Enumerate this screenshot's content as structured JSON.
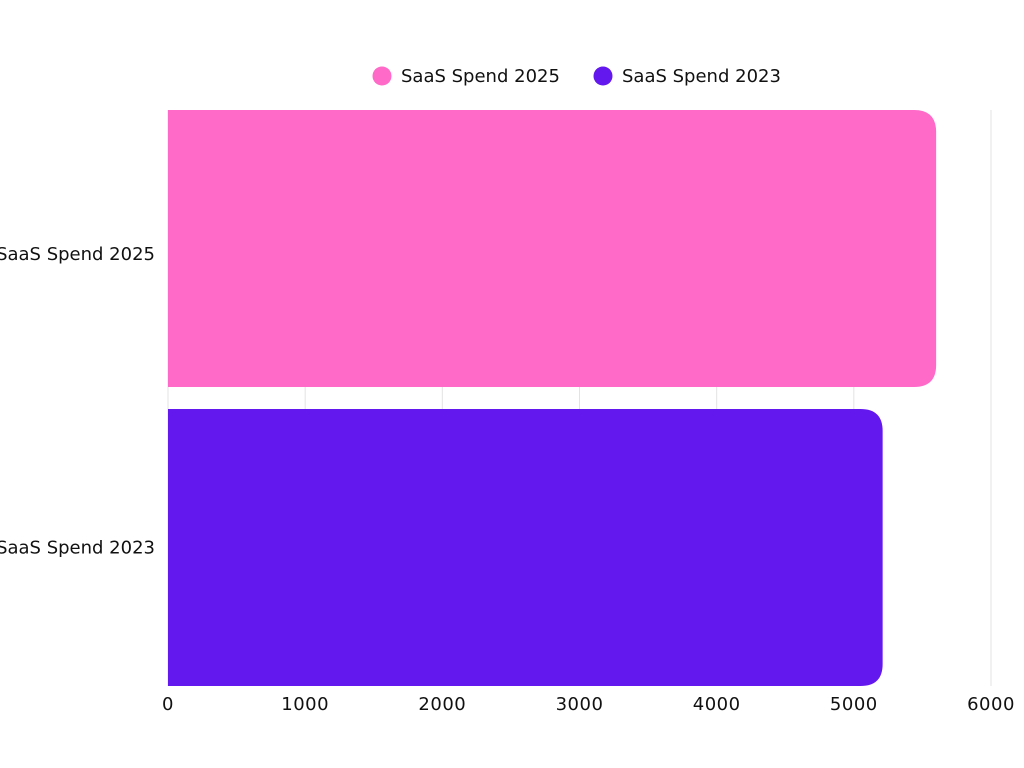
{
  "chart_data": {
    "type": "bar",
    "orientation": "horizontal",
    "categories": [
      "SaaS Spend 2025",
      "SaaS Spend 2023"
    ],
    "series": [
      {
        "name": "SaaS Spend 2025",
        "values": [
          5600,
          null
        ],
        "color": "#ff69c7"
      },
      {
        "name": "SaaS Spend 2023",
        "values": [
          null,
          5210
        ],
        "color": "#6318ed"
      }
    ],
    "xlim": [
      0,
      6000
    ],
    "xticks": [
      "0",
      "1000",
      "2000",
      "3000",
      "4000",
      "5000",
      "6000"
    ],
    "grid": "vertical",
    "legend_position": "top-center",
    "title": "",
    "xlabel": "",
    "ylabel": ""
  }
}
